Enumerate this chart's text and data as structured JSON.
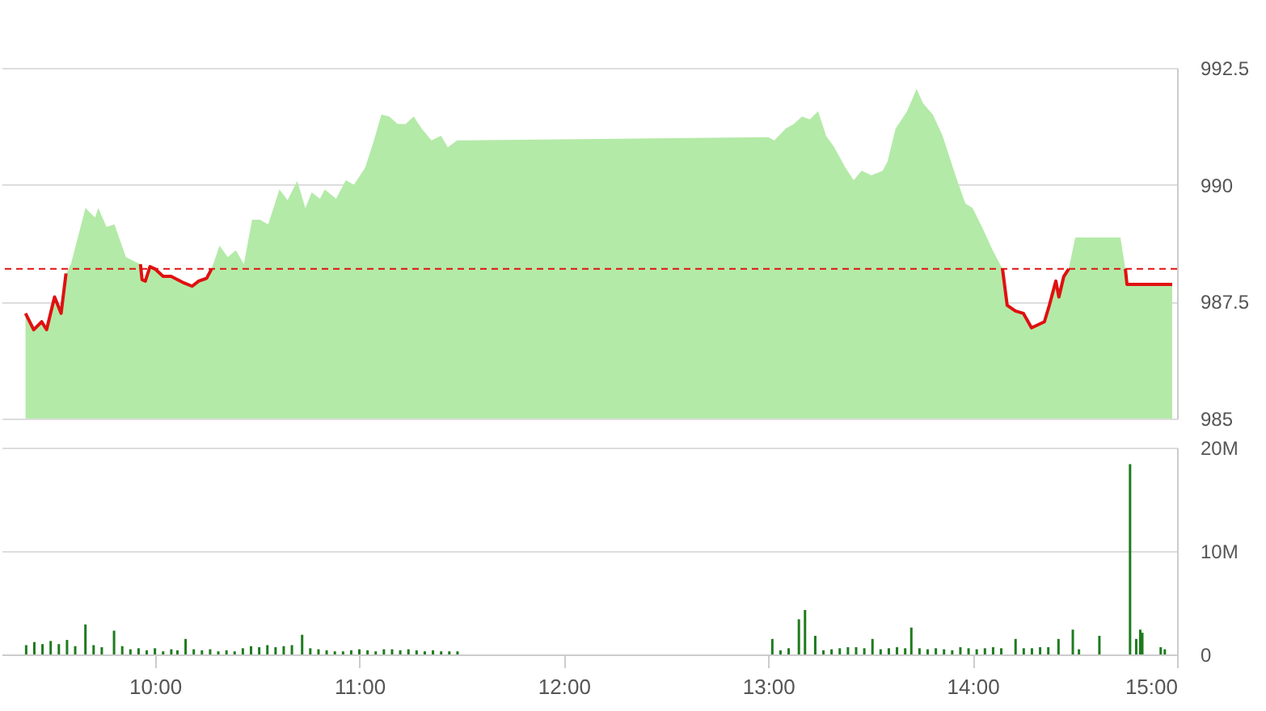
{
  "chart_data": [
    {
      "type": "area",
      "tick_labels": "y",
      "grid": "y",
      "xlim": [
        9.25,
        15
      ],
      "ylim": [
        985,
        992.5
      ],
      "yticks": [
        985,
        987.5,
        990,
        992.5
      ],
      "x": [
        9.367,
        9.407,
        9.446,
        9.47,
        9.509,
        9.541,
        9.565,
        9.589,
        9.66,
        9.707,
        9.723,
        9.763,
        9.802,
        9.858,
        9.905,
        9.929,
        9.937,
        9.953,
        9.976,
        10.0,
        10.04,
        10.079,
        10.142,
        10.182,
        10.214,
        10.253,
        10.277,
        10.316,
        10.356,
        10.396,
        10.435,
        10.475,
        10.514,
        10.554,
        10.609,
        10.649,
        10.696,
        10.736,
        10.767,
        10.807,
        10.831,
        10.886,
        10.934,
        10.973,
        11.028,
        11.068,
        11.108,
        11.147,
        11.187,
        11.226,
        11.266,
        11.305,
        11.353,
        11.4,
        11.432,
        11.479,
        11.5,
        13.0,
        13.03,
        13.085,
        13.125,
        13.165,
        13.204,
        13.244,
        13.283,
        13.323,
        13.378,
        13.418,
        13.457,
        13.505,
        13.56,
        13.584,
        13.623,
        13.679,
        13.726,
        13.758,
        13.805,
        13.853,
        13.916,
        13.964,
        14.0,
        14.051,
        14.098,
        14.146,
        14.169,
        14.209,
        14.248,
        14.288,
        14.351,
        14.375,
        14.407,
        14.422,
        14.446,
        14.47,
        14.502,
        14.723,
        14.747,
        14.755,
        14.976
      ],
      "series": [
        {
          "type": "area",
          "color": "#b3eaa7",
          "values": [
            987.25,
            986.9,
            987.07,
            986.9,
            987.6,
            987.25,
            988.1,
            988.3,
            989.5,
            989.3,
            989.5,
            989.1,
            989.15,
            988.45,
            988.35,
            988.3,
            987.97,
            987.94,
            988.25,
            988.2,
            988.04,
            988.04,
            987.9,
            987.83,
            987.94,
            988.0,
            988.2,
            988.7,
            988.45,
            988.6,
            988.3,
            989.25,
            989.25,
            989.15,
            989.9,
            989.67,
            990.08,
            989.5,
            989.84,
            989.7,
            989.9,
            989.7,
            990.1,
            990.0,
            990.36,
            990.9,
            991.5,
            991.46,
            991.3,
            991.3,
            991.46,
            991.2,
            990.95,
            991.05,
            990.8,
            990.95,
            990.95,
            991.02,
            990.95,
            991.2,
            991.3,
            991.46,
            991.4,
            991.57,
            991.05,
            990.8,
            990.36,
            990.1,
            990.3,
            990.2,
            990.3,
            990.5,
            991.2,
            991.57,
            992.05,
            991.74,
            991.5,
            991.05,
            990.2,
            989.6,
            989.5,
            989.05,
            988.6,
            988.2,
            987.42,
            987.3,
            987.25,
            986.94,
            987.07,
            987.42,
            987.94,
            987.6,
            988.04,
            988.2,
            988.87,
            988.87,
            988.2,
            987.87,
            987.87
          ]
        },
        {
          "type": "line",
          "color": "#e01010",
          "values": [
            987.25,
            986.9,
            987.07,
            986.9,
            987.6,
            987.25,
            988.1,
            null,
            null,
            null,
            null,
            null,
            null,
            null,
            null,
            988.3,
            987.97,
            987.94,
            988.25,
            988.2,
            988.04,
            988.04,
            987.9,
            987.83,
            987.94,
            988.0,
            988.2,
            null,
            null,
            null,
            null,
            null,
            null,
            null,
            null,
            null,
            null,
            null,
            null,
            null,
            null,
            null,
            null,
            null,
            null,
            null,
            null,
            null,
            null,
            null,
            null,
            null,
            null,
            null,
            null,
            null,
            null,
            null,
            null,
            null,
            null,
            null,
            null,
            null,
            null,
            null,
            null,
            null,
            null,
            null,
            null,
            null,
            null,
            null,
            null,
            null,
            null,
            null,
            null,
            null,
            null,
            null,
            null,
            988.2,
            987.42,
            987.3,
            987.25,
            986.94,
            987.07,
            987.42,
            987.94,
            987.6,
            988.04,
            988.2,
            null,
            null,
            988.2,
            987.87,
            987.87
          ]
        }
      ],
      "ref_lines": [
        {
          "axis": "y",
          "value": 988.2,
          "color": "#e01010",
          "line_style": "dashed"
        }
      ]
    },
    {
      "type": "bar",
      "grid": "y",
      "xlim": [
        9.25,
        15
      ],
      "ylim": [
        0,
        20
      ],
      "yticks": [
        0,
        {
          "value": 10,
          "label": "10M"
        },
        {
          "value": 20,
          "label": "20M"
        }
      ],
      "xticks": [
        {
          "value": 10,
          "label": "10:00"
        },
        {
          "value": 11,
          "label": "11:00"
        },
        {
          "value": 12,
          "label": "12:00"
        },
        {
          "value": 13,
          "label": "13:00"
        },
        {
          "value": 14,
          "label": "14:00"
        },
        {
          "value": 15,
          "label": "15:00"
        }
      ],
      "x": [
        9.37,
        9.41,
        9.45,
        9.49,
        9.53,
        9.57,
        9.61,
        9.66,
        9.7,
        9.74,
        9.8,
        9.84,
        9.88,
        9.92,
        9.96,
        10.0,
        10.04,
        10.08,
        10.11,
        10.15,
        10.19,
        10.23,
        10.27,
        10.31,
        10.35,
        10.39,
        10.43,
        10.47,
        10.51,
        10.55,
        10.59,
        10.63,
        10.67,
        10.72,
        10.76,
        10.8,
        10.84,
        10.88,
        10.92,
        10.96,
        11.0,
        11.04,
        11.08,
        11.12,
        11.16,
        11.2,
        11.24,
        11.28,
        11.32,
        11.36,
        11.4,
        11.44,
        11.48,
        13.02,
        13.06,
        13.1,
        13.15,
        13.18,
        13.23,
        13.27,
        13.31,
        13.35,
        13.39,
        13.43,
        13.47,
        13.51,
        13.55,
        13.59,
        13.63,
        13.67,
        13.7,
        13.74,
        13.78,
        13.82,
        13.86,
        13.9,
        13.94,
        13.98,
        14.02,
        14.06,
        14.1,
        14.14,
        14.21,
        14.25,
        14.29,
        14.33,
        14.37,
        14.42,
        14.49,
        14.52,
        14.62,
        14.77,
        14.8,
        14.82,
        14.83,
        14.92,
        14.94
      ],
      "series": [
        {
          "color": "#1e7b1e",
          "values": [
            0.9,
            1.2,
            1.0,
            1.3,
            1.0,
            1.4,
            0.8,
            2.9,
            0.9,
            0.7,
            2.3,
            0.8,
            0.5,
            0.6,
            0.4,
            0.6,
            0.3,
            0.5,
            0.4,
            1.5,
            0.5,
            0.4,
            0.5,
            0.3,
            0.4,
            0.3,
            0.6,
            0.8,
            0.7,
            0.9,
            0.7,
            0.8,
            0.9,
            1.9,
            0.6,
            0.5,
            0.4,
            0.3,
            0.3,
            0.4,
            0.5,
            0.4,
            0.3,
            0.5,
            0.5,
            0.4,
            0.5,
            0.4,
            0.3,
            0.4,
            0.3,
            0.3,
            0.3,
            1.5,
            0.4,
            0.6,
            3.4,
            4.3,
            1.8,
            0.4,
            0.5,
            0.6,
            0.7,
            0.7,
            0.6,
            1.5,
            0.5,
            0.6,
            0.7,
            0.6,
            2.6,
            0.6,
            0.5,
            0.6,
            0.5,
            0.4,
            0.7,
            0.6,
            0.5,
            0.6,
            0.7,
            0.6,
            1.5,
            0.6,
            0.6,
            0.7,
            0.7,
            1.5,
            2.4,
            0.5,
            1.8,
            18.4,
            1.5,
            2.4,
            2.1,
            0.7,
            0.5
          ]
        }
      ]
    }
  ]
}
